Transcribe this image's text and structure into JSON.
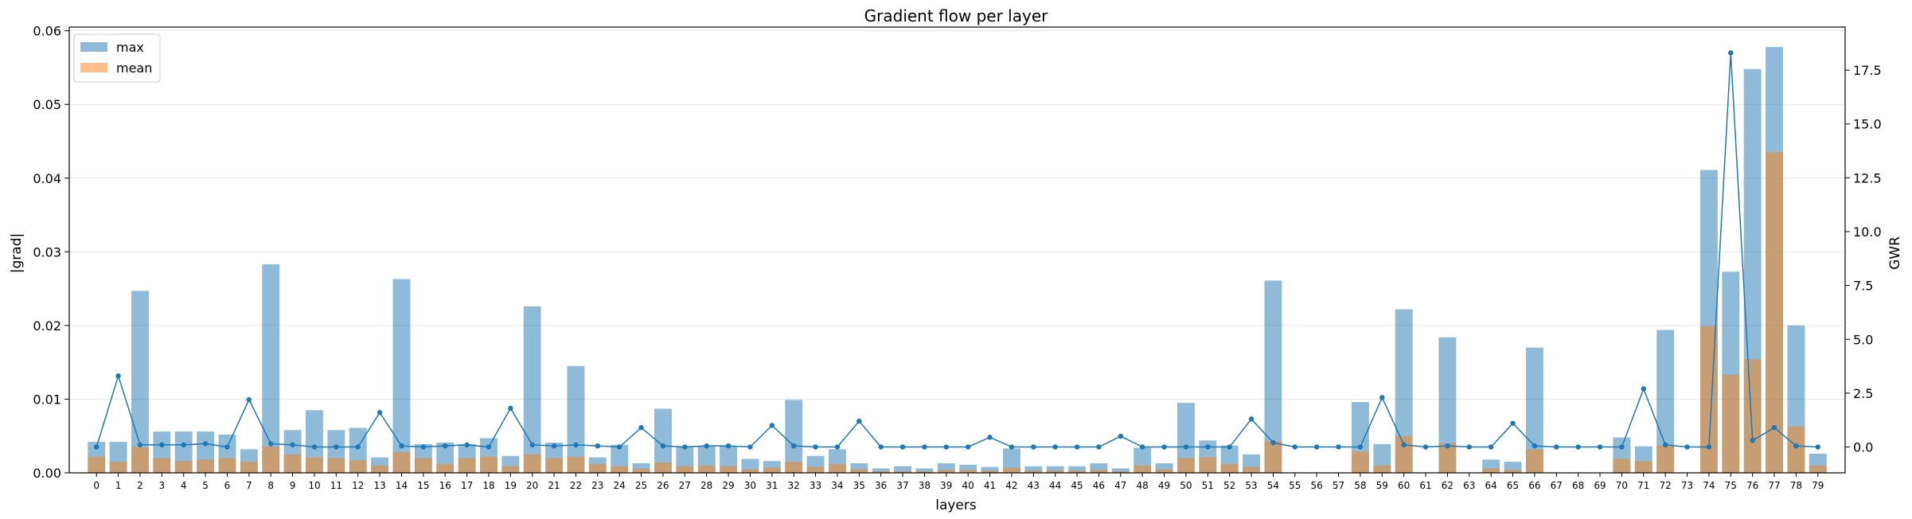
{
  "chart_data": {
    "type": "bar",
    "title": "Gradient flow per layer",
    "xlabel": "layers",
    "ylabel": "|grad|",
    "y2label": "GWR",
    "ylim": [
      0,
      0.0605
    ],
    "y2lim": [
      -1.2,
      19.5
    ],
    "yticks": [
      "0.00",
      "0.01",
      "0.02",
      "0.03",
      "0.04",
      "0.05",
      "0.06"
    ],
    "y2ticks": [
      "0.0",
      "2.5",
      "5.0",
      "7.5",
      "10.0",
      "12.5",
      "15.0",
      "17.5"
    ],
    "grid": "horizontal",
    "legend_position": "top-left",
    "colors": {
      "max": "#1f77b4",
      "mean": "#ff7f0e",
      "gwr": "#1f77b4"
    },
    "categories": [
      "0",
      "1",
      "2",
      "3",
      "4",
      "5",
      "6",
      "7",
      "8",
      "9",
      "10",
      "11",
      "12",
      "13",
      "14",
      "15",
      "16",
      "17",
      "18",
      "19",
      "20",
      "21",
      "22",
      "23",
      "24",
      "25",
      "26",
      "27",
      "28",
      "29",
      "30",
      "31",
      "32",
      "33",
      "34",
      "35",
      "36",
      "37",
      "38",
      "39",
      "40",
      "41",
      "42",
      "43",
      "44",
      "45",
      "46",
      "47",
      "48",
      "49",
      "50",
      "51",
      "52",
      "53",
      "54",
      "55",
      "56",
      "57",
      "58",
      "59",
      "60",
      "61",
      "62",
      "63",
      "64",
      "65",
      "66",
      "67",
      "68",
      "69",
      "70",
      "71",
      "72",
      "73",
      "74",
      "75",
      "76",
      "77",
      "78",
      "79"
    ],
    "series": [
      {
        "name": "max",
        "axis": "left",
        "kind": "bar",
        "values": [
          0.0042,
          0.0042,
          0.0247,
          0.0056,
          0.0056,
          0.0056,
          0.0052,
          0.0032,
          0.0283,
          0.0058,
          0.0085,
          0.0058,
          0.0061,
          0.0021,
          0.0263,
          0.0039,
          0.0041,
          0.0039,
          0.0047,
          0.0023,
          0.0226,
          0.0041,
          0.0145,
          0.0021,
          0.0038,
          0.0013,
          0.0087,
          0.0036,
          0.0037,
          0.0036,
          0.0019,
          0.0016,
          0.0099,
          0.0023,
          0.0032,
          0.0013,
          0.0006,
          0.0009,
          0.0006,
          0.0013,
          0.0011,
          0.0008,
          0.0033,
          0.0009,
          0.0009,
          0.0009,
          0.0013,
          0.0006,
          0.0034,
          0.0013,
          0.0095,
          0.0044,
          0.0037,
          0.0025,
          0.0261,
          0.0,
          0.0,
          0.0,
          0.0096,
          0.0039,
          0.0222,
          0.0,
          0.0184,
          0.0,
          0.0018,
          0.0015,
          0.017,
          0.0,
          0.0,
          0.0,
          0.0048,
          0.0036,
          0.0194,
          0.0,
          0.0411,
          0.0273,
          0.0548,
          0.0578,
          0.02,
          0.0026
        ]
      },
      {
        "name": "mean",
        "axis": "left",
        "kind": "bar",
        "values": [
          0.0022,
          0.0015,
          0.0035,
          0.002,
          0.0016,
          0.0018,
          0.002,
          0.0015,
          0.0036,
          0.0025,
          0.0021,
          0.002,
          0.0017,
          0.001,
          0.0028,
          0.002,
          0.0012,
          0.002,
          0.0022,
          0.0009,
          0.0025,
          0.002,
          0.0022,
          0.0012,
          0.0009,
          0.0006,
          0.0014,
          0.0009,
          0.001,
          0.0009,
          0.0005,
          0.0007,
          0.0015,
          0.0008,
          0.0012,
          0.0005,
          0.0002,
          0.0002,
          0.0002,
          0.0004,
          0.0004,
          0.0003,
          0.0007,
          0.0003,
          0.0003,
          0.0003,
          0.0004,
          0.0002,
          0.001,
          0.0005,
          0.002,
          0.0021,
          0.0012,
          0.0008,
          0.0043,
          0.0,
          0.0,
          0.0,
          0.0029,
          0.001,
          0.005,
          0.0,
          0.004,
          0.0,
          0.0006,
          0.0004,
          0.0032,
          0.0,
          0.0,
          0.0,
          0.0019,
          0.0016,
          0.0037,
          0.0,
          0.0199,
          0.0133,
          0.0154,
          0.0435,
          0.0063,
          0.001
        ]
      },
      {
        "name": "GWR",
        "axis": "right",
        "kind": "line",
        "values": [
          0.0,
          3.3,
          0.1,
          0.1,
          0.1,
          0.15,
          0.0,
          2.2,
          0.15,
          0.1,
          0.0,
          0.0,
          0.0,
          1.6,
          0.05,
          0.0,
          0.05,
          0.1,
          0.0,
          1.8,
          0.1,
          0.05,
          0.1,
          0.05,
          0.0,
          0.9,
          0.05,
          0.0,
          0.05,
          0.05,
          0.0,
          1.0,
          0.05,
          0.0,
          0.0,
          1.2,
          0.0,
          0.0,
          0.0,
          0.0,
          0.0,
          0.45,
          0.0,
          0.0,
          0.0,
          0.0,
          0.0,
          0.5,
          0.0,
          0.0,
          0.0,
          0.0,
          0.0,
          1.3,
          0.2,
          0.0,
          0.0,
          0.0,
          0.0,
          2.3,
          0.1,
          0.0,
          0.05,
          0.0,
          0.0,
          1.1,
          0.05,
          0.0,
          0.0,
          0.0,
          0.0,
          2.7,
          0.1,
          0.0,
          0.0,
          18.3,
          0.3,
          0.9,
          0.05,
          0.0
        ]
      }
    ]
  }
}
